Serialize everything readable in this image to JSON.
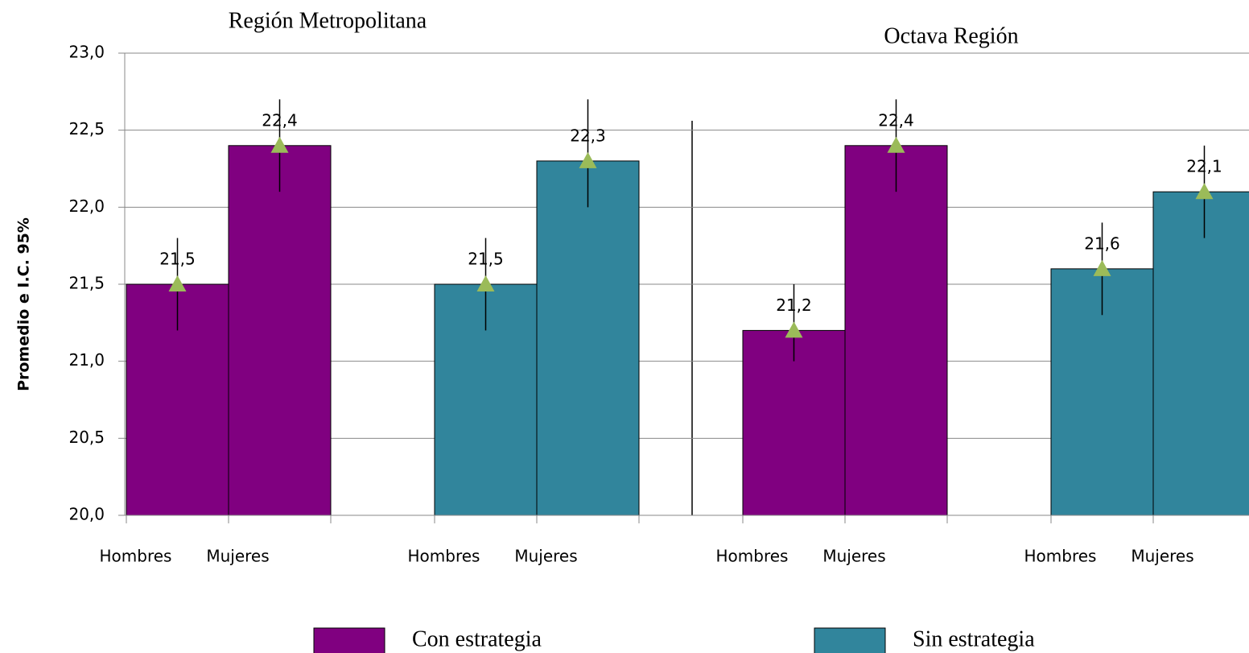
{
  "chart_data": {
    "type": "bar",
    "panel_titles": [
      "Región Metropolitana",
      "Octava Región"
    ],
    "y_label": "Promedio e I.C. 95%",
    "categories": [
      "Hombres",
      "Mujeres",
      "Hombres",
      "Mujeres",
      "Hombres",
      "Mujeres",
      "Hombres",
      "Mujeres"
    ],
    "ylim": [
      20,
      23
    ],
    "yticks": [
      {
        "value": 20,
        "label": "20,0"
      },
      {
        "value": 20.5,
        "label": "20,5"
      },
      {
        "value": 21,
        "label": "21,0"
      },
      {
        "value": 21.5,
        "label": "21,5"
      },
      {
        "value": 22,
        "label": "22,0"
      },
      {
        "value": 22.5,
        "label": "22,5"
      },
      {
        "value": 23,
        "label": "23,0"
      }
    ],
    "grid": true,
    "marker_color": "#9bbb59",
    "series": [
      {
        "name": "Con estrategia",
        "color": "#800080",
        "values": [
          21.5,
          22.4,
          null,
          null,
          21.2,
          22.4,
          null,
          null
        ],
        "value_labels": [
          "21,5",
          "22,4",
          null,
          null,
          "21,2",
          "22,4",
          null,
          null
        ],
        "ci_low": [
          21.2,
          22.1,
          null,
          null,
          21.0,
          22.1,
          null,
          null
        ],
        "ci_high": [
          21.8,
          22.7,
          null,
          null,
          21.5,
          22.7,
          null,
          null
        ]
      },
      {
        "name": "Sin estrategia",
        "color": "#31859c",
        "values": [
          null,
          null,
          21.5,
          22.3,
          null,
          null,
          21.6,
          22.1
        ],
        "value_labels": [
          null,
          null,
          "21,5",
          "22,3",
          null,
          null,
          "21,6",
          "22,1"
        ],
        "ci_low": [
          null,
          null,
          21.2,
          22.0,
          null,
          null,
          21.3,
          21.8
        ],
        "ci_high": [
          null,
          null,
          21.8,
          22.7,
          null,
          null,
          21.9,
          22.4
        ]
      }
    ]
  }
}
